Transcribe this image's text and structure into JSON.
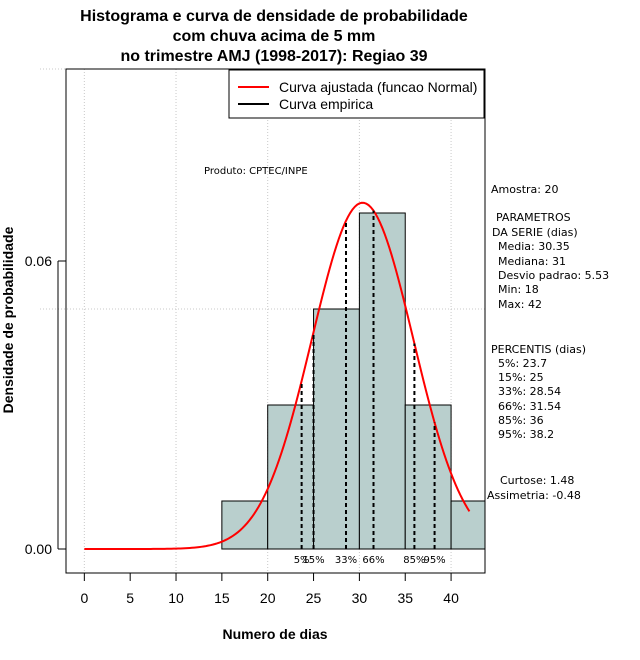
{
  "chart_data": {
    "type": "histogram",
    "title_lines": [
      "Histograma e curva de densidade de probabilidade",
      "com chuva acima de 5 mm",
      "no trimestre AMJ (1998-2017): Regiao 39"
    ],
    "xlabel": "Numero de dias",
    "ylabel": "Densidade de probabilidade",
    "xlim": [
      -2,
      43.7
    ],
    "ylim": [
      -0.005,
      0.1
    ],
    "x_ticks": [
      0,
      5,
      10,
      15,
      20,
      25,
      30,
      35,
      40
    ],
    "y_ticks": [
      0.0,
      0.06
    ],
    "y_tick_labels": [
      "0.00",
      "0.06"
    ],
    "grid_x": [
      0,
      10,
      20,
      30,
      40
    ],
    "grid_y": [
      0.05,
      0.1
    ],
    "bins": [
      {
        "start": 15,
        "end": 20,
        "density": 0.01
      },
      {
        "start": 20,
        "end": 25,
        "density": 0.03
      },
      {
        "start": 25,
        "end": 30,
        "density": 0.05
      },
      {
        "start": 30,
        "end": 35,
        "density": 0.07
      },
      {
        "start": 35,
        "end": 40,
        "density": 0.03
      },
      {
        "start": 40,
        "end": 45,
        "density": 0.01
      }
    ],
    "bar_color": "#b9cfcd",
    "curve_color": "#ff0000",
    "normal_fit": {
      "mean": 30.35,
      "sd": 5.53,
      "x_from": 0,
      "x_to": 42
    },
    "percentile_lines": [
      {
        "label": "5%",
        "x": 23.7
      },
      {
        "label": "15%",
        "x": 25
      },
      {
        "label": "33%",
        "x": 28.54
      },
      {
        "label": "66%",
        "x": 31.54
      },
      {
        "label": "85%",
        "x": 36
      },
      {
        "label": "95%",
        "x": 38.2
      }
    ],
    "legend": [
      {
        "label": "Curva ajustada (funcao Normal)",
        "color": "#ff0000"
      },
      {
        "label": "Curva empirica",
        "color": "#000000"
      }
    ]
  },
  "produto": "Produto: CPTEC/INPE",
  "side_panel": {
    "amostra": "Amostra: 20",
    "param_header_1": "PARAMETROS",
    "param_header_2": "DA SERIE (dias)",
    "media": "Media: 30.35",
    "mediana": "Mediana: 31",
    "desvio": "Desvio padrao: 5.53",
    "min": "Min: 18",
    "max": "Max: 42",
    "percentis_header": "PERCENTIS (dias)",
    "p5": "5%: 23.7",
    "p15": "15%: 25",
    "p33": "33%: 28.54",
    "p66": "66%: 31.54",
    "p85": "85%: 36",
    "p95": "95%: 38.2",
    "curtose": "Curtose: 1.48",
    "assimetria": "Assimetria: -0.48"
  }
}
